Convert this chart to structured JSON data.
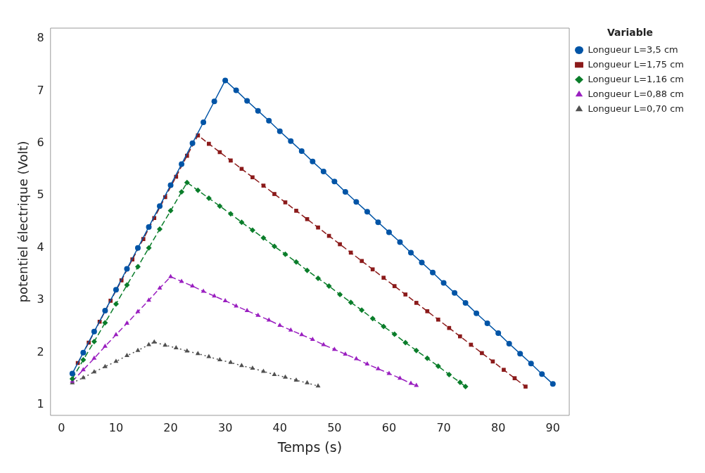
{
  "chart_data": {
    "type": "line",
    "xlabel": "Temps (s)",
    "ylabel": "potentiel électrique (Volt)",
    "legend_title": "Variable",
    "legend": "right",
    "grid": false,
    "xlim": [
      -2,
      93
    ],
    "xticks": [
      0,
      10,
      20,
      30,
      40,
      50,
      60,
      70,
      80,
      90
    ],
    "ylim": [
      0.8,
      8.2
    ],
    "yticks": [
      1,
      2,
      3,
      4,
      5,
      6,
      7,
      8
    ],
    "series": [
      {
        "name": "Longueur L=3,5 cm",
        "color": "#0054a6",
        "marker": "circle",
        "line_style": "solid",
        "x": [
          2,
          4,
          6,
          8,
          10,
          12,
          14,
          16,
          18,
          20,
          22,
          24,
          26,
          28,
          30,
          32,
          34,
          36,
          38,
          40,
          42,
          44,
          46,
          48,
          50,
          52,
          54,
          56,
          58,
          60,
          62,
          64,
          66,
          68,
          70,
          72,
          74,
          76,
          78,
          80,
          82,
          84,
          86,
          88,
          90
        ],
        "values": [
          1.6,
          2.0,
          2.4,
          2.8,
          3.2,
          3.6,
          4.0,
          4.4,
          4.8,
          5.2,
          5.6,
          6.0,
          6.4,
          6.8,
          7.2,
          7.01,
          6.81,
          6.62,
          6.43,
          6.23,
          6.04,
          5.85,
          5.65,
          5.46,
          5.27,
          5.07,
          4.88,
          4.69,
          4.49,
          4.3,
          4.11,
          3.91,
          3.72,
          3.53,
          3.33,
          3.14,
          2.95,
          2.75,
          2.56,
          2.37,
          2.17,
          1.98,
          1.79,
          1.59,
          1.4
        ]
      },
      {
        "name": "Longueur L=1,75 cm",
        "color": "#8b1a1a",
        "marker": "square",
        "line_style": "dashed",
        "x": [
          3,
          5,
          7,
          9,
          11,
          13,
          15,
          17,
          19,
          21,
          23,
          25,
          27,
          29,
          31,
          33,
          35,
          37,
          39,
          41,
          43,
          45,
          47,
          49,
          51,
          53,
          55,
          57,
          59,
          61,
          63,
          65,
          67,
          69,
          71,
          73,
          75,
          77,
          79,
          81,
          83,
          85
        ],
        "values": [
          1.8,
          2.19,
          2.59,
          2.99,
          3.38,
          3.78,
          4.17,
          4.57,
          4.97,
          5.36,
          5.76,
          6.15,
          5.99,
          5.83,
          5.67,
          5.51,
          5.35,
          5.19,
          5.03,
          4.87,
          4.71,
          4.55,
          4.39,
          4.23,
          4.07,
          3.91,
          3.75,
          3.59,
          3.43,
          3.27,
          3.11,
          2.95,
          2.79,
          2.63,
          2.47,
          2.31,
          2.15,
          1.99,
          1.83,
          1.67,
          1.51,
          1.35
        ]
      },
      {
        "name": "Longueur L=1,16 cm",
        "color": "#0a7d2a",
        "marker": "diamond",
        "line_style": "dashed",
        "x": [
          2,
          4,
          6,
          8,
          10,
          12,
          14,
          16,
          18,
          20,
          22,
          23,
          25,
          27,
          29,
          31,
          33,
          35,
          37,
          39,
          41,
          43,
          45,
          47,
          49,
          51,
          53,
          55,
          57,
          59,
          61,
          63,
          65,
          67,
          69,
          71,
          73,
          74
        ],
        "values": [
          1.5,
          1.86,
          2.21,
          2.57,
          2.93,
          3.29,
          3.64,
          4.0,
          4.36,
          4.71,
          5.07,
          5.25,
          5.1,
          4.95,
          4.8,
          4.65,
          4.49,
          4.34,
          4.19,
          4.03,
          3.88,
          3.73,
          3.57,
          3.42,
          3.27,
          3.11,
          2.96,
          2.81,
          2.65,
          2.5,
          2.35,
          2.19,
          2.04,
          1.89,
          1.74,
          1.58,
          1.43,
          1.35
        ]
      },
      {
        "name": "Longueur L=0,88 cm",
        "color": "#9a1fc0",
        "marker": "triangle",
        "line_style": "dashed",
        "x": [
          2,
          4,
          6,
          8,
          10,
          12,
          14,
          16,
          18,
          20,
          22,
          24,
          26,
          28,
          30,
          32,
          34,
          36,
          38,
          40,
          42,
          44,
          46,
          48,
          50,
          52,
          54,
          56,
          58,
          60,
          62,
          64,
          65
        ],
        "values": [
          1.45,
          1.67,
          1.89,
          2.12,
          2.34,
          2.56,
          2.78,
          3.0,
          3.23,
          3.45,
          3.36,
          3.27,
          3.17,
          3.08,
          2.99,
          2.89,
          2.8,
          2.71,
          2.62,
          2.52,
          2.43,
          2.34,
          2.25,
          2.15,
          2.06,
          1.97,
          1.88,
          1.78,
          1.69,
          1.6,
          1.51,
          1.41,
          1.37
        ]
      },
      {
        "name": "Longueur L=0,70 cm",
        "color": "#505050",
        "marker": "triangle",
        "line_style": "dotted",
        "x": [
          2,
          4,
          6,
          8,
          10,
          12,
          14,
          16,
          17,
          19,
          21,
          23,
          25,
          27,
          29,
          31,
          33,
          35,
          37,
          39,
          41,
          43,
          45,
          47
        ],
        "values": [
          1.42,
          1.52,
          1.63,
          1.73,
          1.83,
          1.94,
          2.04,
          2.15,
          2.2,
          2.14,
          2.09,
          2.03,
          1.98,
          1.92,
          1.86,
          1.81,
          1.75,
          1.7,
          1.64,
          1.58,
          1.53,
          1.47,
          1.42,
          1.36
        ]
      }
    ]
  }
}
